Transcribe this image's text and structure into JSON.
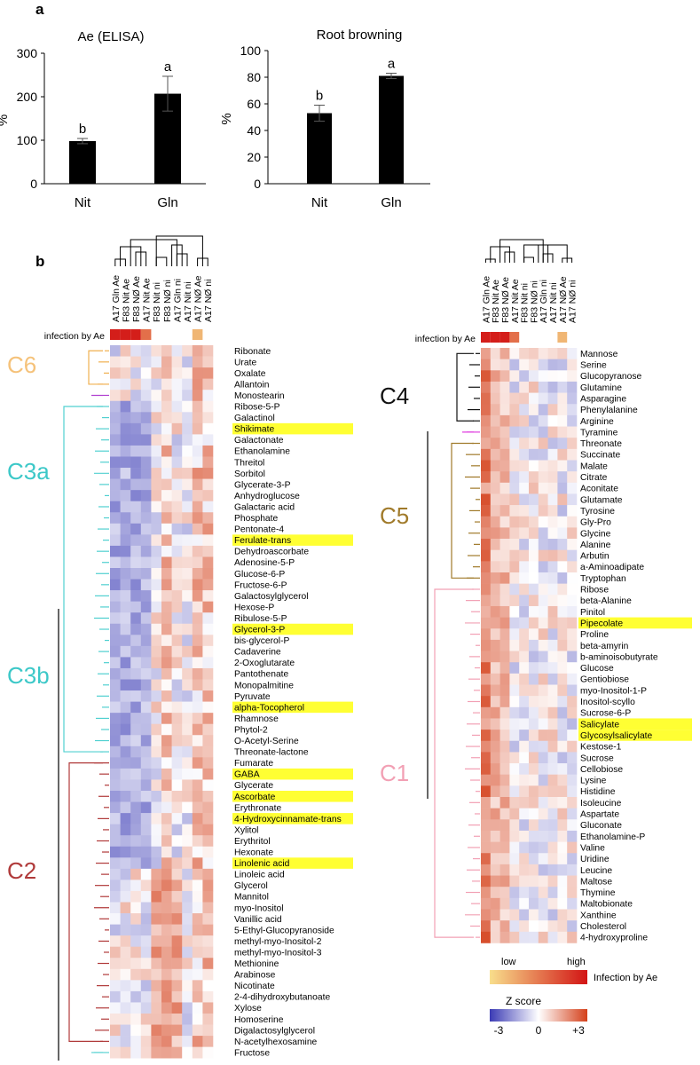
{
  "panel_a": {
    "label": "a",
    "chart_data": [
      {
        "type": "bar",
        "title": "Ae (ELISA)",
        "ylabel": "%",
        "categories": [
          "Nit",
          "Gln"
        ],
        "values": [
          98,
          207
        ],
        "errors": [
          6,
          40
        ],
        "letters": [
          "b",
          "a"
        ],
        "ylim": [
          0,
          300
        ],
        "yticks": [
          0,
          100,
          200,
          300
        ]
      },
      {
        "type": "bar",
        "title": "Root browning",
        "ylabel": "%",
        "categories": [
          "Nit",
          "Gln"
        ],
        "values": [
          53,
          81
        ],
        "errors": [
          6,
          2
        ],
        "letters": [
          "b",
          "a"
        ],
        "ylim": [
          0,
          100
        ],
        "yticks": [
          0,
          20,
          40,
          60,
          80,
          100
        ]
      }
    ]
  },
  "panel_b": {
    "label": "b",
    "infection_label": "infection by Ae",
    "left": {
      "columns": [
        "A17 Gln Ae",
        "F83 Nit Ae",
        "F83 NØ Ae",
        "A17 Nit Ae",
        "F83 Nit ni",
        "F83 NØ ni",
        "A17 Gln ni",
        "A17 Nit ni",
        "A17 NØ Ae",
        "A17 NØ ni"
      ],
      "infection": [
        0.95,
        0.95,
        0.95,
        0.55,
        0,
        0,
        0,
        0,
        0.2,
        0
      ],
      "cluster_labels": [
        {
          "name": "C6",
          "color": "#f5c27a"
        },
        {
          "name": "C3a",
          "color": "#3cc8c8"
        },
        {
          "name": "C3b",
          "color": "#3cc8c8"
        },
        {
          "name": "C2",
          "color": "#b03a3a"
        }
      ],
      "rows": [
        "Ribonate",
        "Urate",
        "Oxalate",
        "Allantoin",
        "Monostearin",
        "Ribose-5-P",
        "Galactinol",
        "Shikimate",
        "Galactonate",
        "Ethanolamine",
        "Threitol",
        "Sorbitol",
        "Glycerate-3-P",
        "Anhydroglucose",
        "Galactaric acid",
        "Phosphate",
        "Pentonate-4",
        "Ferulate-trans",
        "Dehydroascorbate",
        "Adenosine-5-P",
        "Glucose-6-P",
        "Fructose-6-P",
        "Galactosylglycerol",
        "Hexose-P",
        "Ribulose-5-P",
        "Glycerol-3-P",
        "bis-glycerol-P",
        "Cadaverine",
        "2-Oxoglutarate",
        "Pantothenate",
        "Monopalmitine",
        "Pyruvate",
        "alpha-Tocopherol",
        "Rhamnose",
        "Phytol-2",
        "O-Acetyl-Serine",
        "Threonate-lactone",
        "Fumarate",
        "GABA",
        "Glycerate",
        "Ascorbate",
        "Erythronate",
        "4-Hydroxycinnamate-trans",
        "Xylitol",
        "Erythritol",
        "Hexonate",
        "Linolenic acid",
        "Linoleic acid",
        "Glycerol",
        "Mannitol",
        "myo-Inositol",
        "Vanillic acid",
        "5-Ethyl-Glucopyranoside",
        "methyl-myo-Inositol-2",
        "methyl-myo-Inositol-3",
        "Methionine",
        "Arabinose",
        "Nicotinate",
        "2-4-dihydroxybutanoate",
        "Xylose",
        "Homoserine",
        "Digalactosylglycerol",
        "N-acetylhexosamine",
        "Fructose"
      ],
      "highlighted": [
        "Shikimate",
        "Ferulate-trans",
        "Glycerol-3-P",
        "alpha-Tocopherol",
        "GABA",
        "Ascorbate",
        "4-Hydroxycinnamate-trans",
        "Linolenic acid"
      ]
    },
    "right": {
      "columns": [
        "A17 Gln Ae",
        "F83 Nit Ae",
        "F83 NØ Ae",
        "A17 Nit Ae",
        "F83 Nit ni",
        "F83 NØ ni",
        "A17 Gln ni",
        "A17 Nit ni",
        "A17 NØ Ae",
        "A17 NØ ni"
      ],
      "infection": [
        0.95,
        0.95,
        0.95,
        0.55,
        0,
        0,
        0,
        0,
        0.2,
        0
      ],
      "cluster_labels": [
        {
          "name": "C4",
          "color": "#111111"
        },
        {
          "name": "C5",
          "color": "#a07a2a"
        },
        {
          "name": "C1",
          "color": "#f2a0b4"
        }
      ],
      "rows": [
        "Mannose",
        "Serine",
        "Glucopyranose",
        "Glutamine",
        "Asparagine",
        "Phenylalanine",
        "Arginine",
        "Tyramine",
        "Threonate",
        "Succinate",
        "Malate",
        "Citrate",
        "Aconitate",
        "Glutamate",
        "Tyrosine",
        "Gly-Pro",
        "Glycine",
        "Alanine",
        "Arbutin",
        "a-Aminoadipate",
        "Tryptophan",
        "Ribose",
        "beta-Alanine",
        "Pinitol",
        "Pipecolate",
        "Proline",
        "beta-amyrin",
        "b-aminoisobutyrate",
        "Glucose",
        "Gentiobiose",
        "myo-Inositol-1-P",
        "Inositol-scyllo",
        "Sucrose-6-P",
        "Salicylate",
        "Glycosylsalicylate",
        "Kestose-1",
        "Sucrose",
        "Cellobiose",
        "Lysine",
        "Histidine",
        "Isoleucine",
        "Aspartate",
        "Gluconate",
        "Ethanolamine-P",
        "Valine",
        "Uridine",
        "Leucine",
        "Maltose",
        "Thymine",
        "Maltobionate",
        "Xanthine",
        "Cholesterol",
        "4-hydroxyproline"
      ],
      "highlighted": [
        "Pipecolate",
        "Salicylate",
        "Glycosylsalicylate"
      ]
    },
    "legend": {
      "infection_low": "low",
      "infection_high": "high",
      "infection_title": "Infection by Ae",
      "zscore_title": "Z score",
      "zscore_min": "-3",
      "zscore_mid": "0",
      "zscore_max": "+3",
      "colors": {
        "neg": "#3b3bb5",
        "mid": "#ffffff",
        "pos": "#d4401a",
        "highlight": "#ffff33"
      }
    }
  }
}
